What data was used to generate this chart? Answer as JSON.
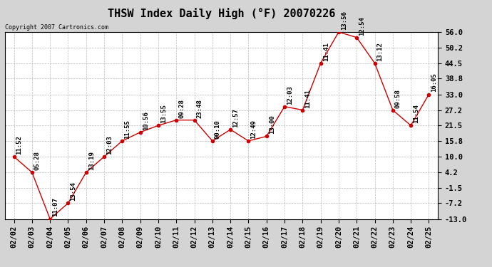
{
  "title": "THSW Index Daily High (°F) 20070226",
  "copyright": "Copyright 2007 Cartronics.com",
  "dates": [
    "02/02",
    "02/03",
    "02/04",
    "02/05",
    "02/06",
    "02/07",
    "02/08",
    "02/09",
    "02/10",
    "02/11",
    "02/12",
    "02/13",
    "02/14",
    "02/15",
    "02/16",
    "02/17",
    "02/18",
    "02/19",
    "02/20",
    "02/21",
    "02/22",
    "02/23",
    "02/24",
    "02/25"
  ],
  "values": [
    10.0,
    4.2,
    -13.0,
    -7.2,
    4.2,
    10.0,
    15.8,
    19.0,
    21.5,
    23.5,
    23.5,
    15.8,
    20.0,
    15.8,
    17.5,
    28.5,
    27.2,
    44.5,
    56.0,
    54.0,
    44.5,
    27.2,
    21.5,
    33.0
  ],
  "labels": [
    "11:52",
    "05:28",
    "11:07",
    "13:54",
    "13:19",
    "12:03",
    "11:55",
    "10:56",
    "13:55",
    "09:28",
    "23:48",
    "00:10",
    "12:57",
    "12:49",
    "13:00",
    "12:03",
    "11:41",
    "11:41",
    "13:56",
    "12:54",
    "13:12",
    "09:58",
    "11:54",
    "16:05"
  ],
  "ylim_min": -13.0,
  "ylim_max": 56.0,
  "yticks": [
    -13.0,
    -7.2,
    -1.5,
    4.2,
    10.0,
    15.8,
    21.5,
    27.2,
    33.0,
    38.8,
    44.5,
    50.2,
    56.0
  ],
  "line_color": "#cc0000",
  "marker_color": "#cc0000",
  "bg_color": "#d4d4d4",
  "plot_bg_color": "#ffffff",
  "grid_color": "#aaaaaa",
  "title_fontsize": 11,
  "label_fontsize": 6.5,
  "tick_fontsize": 7.5
}
